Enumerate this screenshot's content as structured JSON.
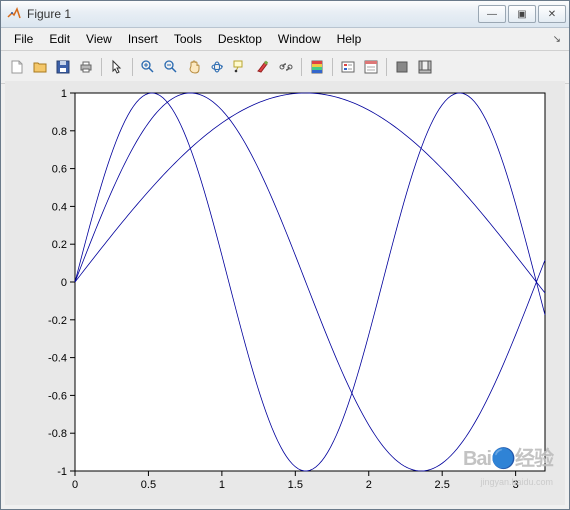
{
  "window": {
    "title": "Figure 1",
    "buttons": {
      "min": "—",
      "max": "▣",
      "close": "✕"
    }
  },
  "menu": {
    "items": [
      "File",
      "Edit",
      "View",
      "Insert",
      "Tools",
      "Desktop",
      "Window",
      "Help"
    ],
    "dock": "↘"
  },
  "toolbar": {
    "names": [
      "new-figure-icon",
      "open-icon",
      "save-icon",
      "print-icon",
      "sep",
      "pointer-icon",
      "sep",
      "zoom-in-icon",
      "zoom-out-icon",
      "pan-icon",
      "rotate3d-icon",
      "datatip-icon",
      "brush-icon",
      "link-icon",
      "sep",
      "colorbar-icon",
      "sep",
      "legend-icon",
      "property-inspector-icon",
      "sep",
      "hide-plot-tools-icon",
      "show-plot-tools-icon"
    ]
  },
  "chart": {
    "type": "line",
    "background_color": "#e8e8e8",
    "axes_background": "#ffffff",
    "axes_border_color": "#000000",
    "tick_color": "#000000",
    "tick_fontsize": 11,
    "xlim": [
      0,
      3.2
    ],
    "ylim": [
      -1,
      1
    ],
    "xticks": [
      0,
      0.5,
      1,
      1.5,
      2,
      2.5,
      3
    ],
    "yticks": [
      -1,
      -0.8,
      -0.6,
      -0.4,
      -0.2,
      0,
      0.2,
      0.4,
      0.6,
      0.8,
      1
    ],
    "line_color": "#00009c",
    "line_width": 0.8,
    "series": [
      {
        "name": "sin(x)",
        "freq": 1
      },
      {
        "name": "sin(2x)",
        "freq": 2
      },
      {
        "name": "sin(3x)",
        "freq": 3
      }
    ],
    "samples": 160
  },
  "watermark": {
    "main": "Bai🔵经验",
    "sub": "jingyan.baidu.com"
  }
}
